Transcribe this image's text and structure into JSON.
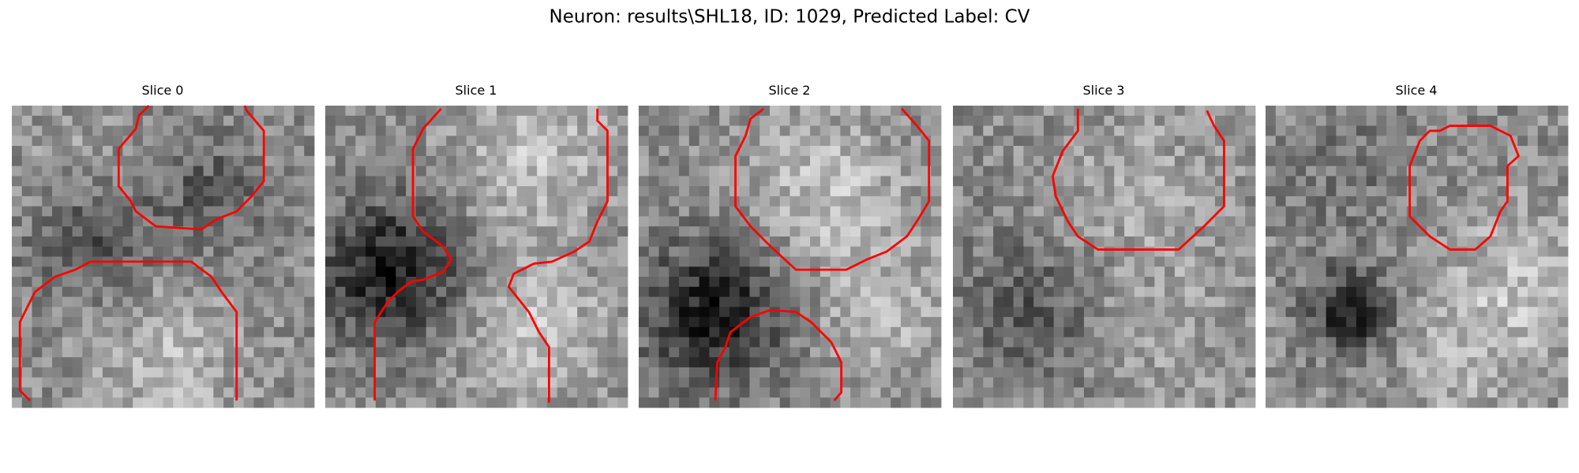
{
  "title": "Neuron: results\\SHL18, ID: 1029, Predicted Label: CV",
  "panels": [
    {
      "title": "Slice 0"
    },
    {
      "title": "Slice 1"
    },
    {
      "title": "Slice 2"
    },
    {
      "title": "Slice 3"
    },
    {
      "title": "Slice 4"
    }
  ]
}
